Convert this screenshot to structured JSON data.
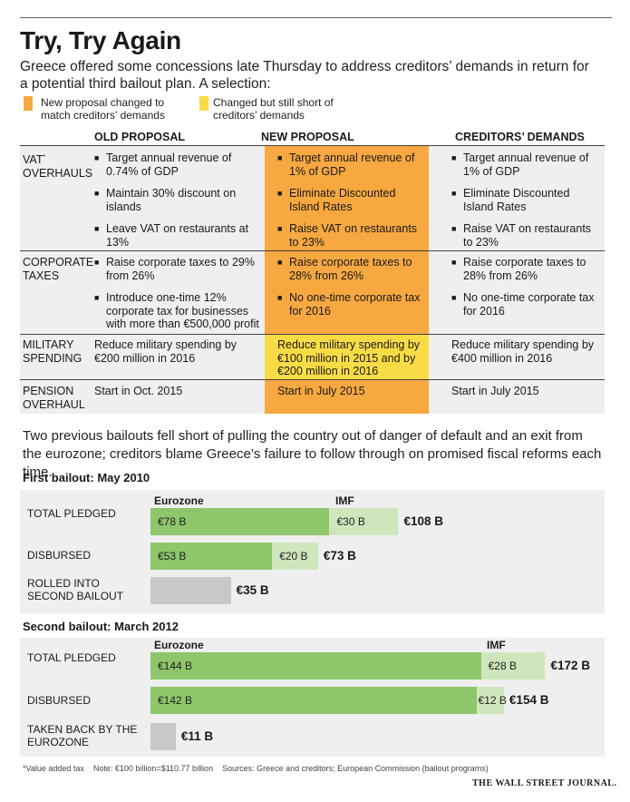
{
  "title": "Try, Try Again",
  "subtitle": "Greece offered some concessions late Thursday to address creditors’ demands in return for a potential third bailout plan. A selection:",
  "colors": {
    "orange": "#f7a840",
    "yellow": "#f9dc45",
    "eurozone": "#8dc66b",
    "imf": "#cfe6bd",
    "rolled": "#c8c8c8",
    "panel": "#efefef"
  },
  "legend": [
    {
      "key": "orange",
      "text": "New proposal changed to match creditors’ demands"
    },
    {
      "key": "yellow",
      "text": "Changed but still short of creditors’ demands"
    }
  ],
  "table": {
    "headers": [
      "OLD PROPOSAL",
      "NEW PROPOSAL",
      "CREDITORS’ DEMANDS"
    ],
    "rows": [
      {
        "label": "VAT* OVERHAULS",
        "highlight": "orange",
        "old": [
          "Target annual revenue of 0.74% of GDP",
          "Maintain 30% discount on islands",
          "Leave VAT on restaurants at 13%"
        ],
        "new": [
          "Target annual revenue of 1% of GDP",
          "Eliminate Discounted Island Rates",
          "Raise VAT on restaurants to 23%"
        ],
        "creditors": [
          "Target annual revenue of 1% of GDP",
          "Eliminate Discounted Island Rates",
          "Raise VAT on restaurants to 23%"
        ]
      },
      {
        "label": "CORPORATE TAXES",
        "highlight": "orange",
        "old": [
          "Raise corporate taxes to 29% from 26%",
          "Introduce one-time 12% corporate tax for businesses with more than €500,000 profit"
        ],
        "new": [
          "Raise corporate taxes to 28% from 26%",
          "No one-time corporate tax for 2016"
        ],
        "creditors": [
          "Raise corporate taxes to 28% from 26%",
          "No one-time corporate tax for 2016"
        ]
      },
      {
        "label": "MILITARY SPENDING",
        "highlight": "yellow",
        "old": "Reduce military spending by €200 million in 2016",
        "new": "Reduce military spending by €100 million in 2015 and by €200 million in 2016",
        "creditors": "Reduce military spending by €400 million in 2016"
      },
      {
        "label": "PENSION OVERHAUL",
        "highlight": "orange",
        "old": "Start in Oct. 2015",
        "new": "Start in July 2015",
        "creditors": "Start in July 2015"
      }
    ]
  },
  "bailout_note": "Two previous bailouts fell short of pulling the country out of danger of default and an exit from the eurozone; creditors blame Greece’s failure to follow through on promised fiscal reforms each time.",
  "chart_data": [
    {
      "type": "bar",
      "title": "First bailout: May 2010",
      "unit": "€ billion",
      "series_labels": [
        "Eurozone",
        "IMF"
      ],
      "categories": [
        "TOTAL PLEDGED",
        "DISBURSED",
        "ROLLED INTO SECOND BAILOUT"
      ],
      "series": [
        {
          "name": "Eurozone",
          "values": [
            78,
            53,
            null
          ],
          "labels": [
            "€78 B",
            "€53 B",
            ""
          ]
        },
        {
          "name": "IMF",
          "values": [
            30,
            20,
            null
          ],
          "labels": [
            "€30 B",
            "€20 B",
            ""
          ]
        },
        {
          "name": "Rolled into second bailout",
          "values": [
            null,
            null,
            35
          ],
          "labels": [
            "",
            "",
            ""
          ]
        }
      ],
      "totals": [
        108,
        73,
        35
      ],
      "total_labels": [
        "€108 B",
        "€73 B",
        "€35 B"
      ]
    },
    {
      "type": "bar",
      "title": "Second bailout: March 2012",
      "unit": "€ billion",
      "series_labels": [
        "Eurozone",
        "IMF"
      ],
      "categories": [
        "TOTAL PLEDGED",
        "DISBURSED",
        "TAKEN BACK BY THE EUROZONE"
      ],
      "series": [
        {
          "name": "Eurozone",
          "values": [
            144,
            142,
            null
          ],
          "labels": [
            "€144 B",
            "€142 B",
            ""
          ]
        },
        {
          "name": "IMF",
          "values": [
            28,
            12,
            null
          ],
          "labels": [
            "€28 B",
            "€12 B",
            ""
          ]
        },
        {
          "name": "Taken back by the eurozone",
          "values": [
            null,
            null,
            11
          ],
          "labels": [
            "",
            "",
            ""
          ]
        }
      ],
      "totals": [
        172,
        154,
        11
      ],
      "total_labels": [
        "€172 B",
        "€154 B",
        "€11 B"
      ]
    }
  ],
  "footnote": "*Value added tax    Note: €100 billion=$110.77 billion    Sources: Greece and creditors; European Commission (bailout programs)",
  "credit": "THE WALL STREET JOURNAL."
}
